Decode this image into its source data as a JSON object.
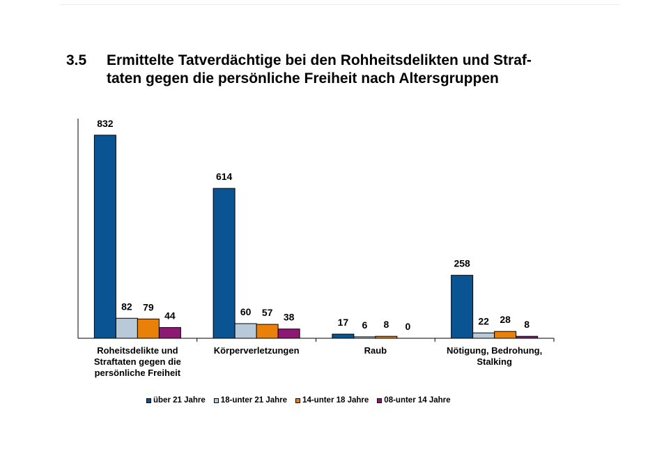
{
  "heading": {
    "number": "3.5",
    "text": "Ermittelte Tatverdächtige bei den Rohheitsdelikten und Straf-\ntaten gegen die persönliche Freiheit nach Altersgruppen"
  },
  "chart_data": {
    "type": "bar",
    "categories": [
      [
        "Roheitsdelikte und",
        "Straftaten gegen die",
        "persönliche Freiheit"
      ],
      [
        "Körperverletzungen"
      ],
      [
        "Raub"
      ],
      [
        "Nötigung, Bedrohung,",
        "Stalking"
      ]
    ],
    "series": [
      {
        "name": "über 21 Jahre",
        "color": "#0b5494",
        "values": [
          832,
          614,
          17,
          258
        ]
      },
      {
        "name": "18-unter 21 Jahre",
        "color": "#b8c9d9",
        "values": [
          82,
          60,
          6,
          22
        ]
      },
      {
        "name": "14-unter 18 Jahre",
        "color": "#e8800a",
        "values": [
          79,
          57,
          8,
          28
        ]
      },
      {
        "name": "08-unter 14 Jahre",
        "color": "#8c1a75",
        "values": [
          44,
          38,
          0,
          8
        ]
      }
    ],
    "ylim": [
      0,
      900
    ],
    "grid": false,
    "y_axis_labels": false,
    "data_labels": true,
    "legend_position": "bottom"
  }
}
